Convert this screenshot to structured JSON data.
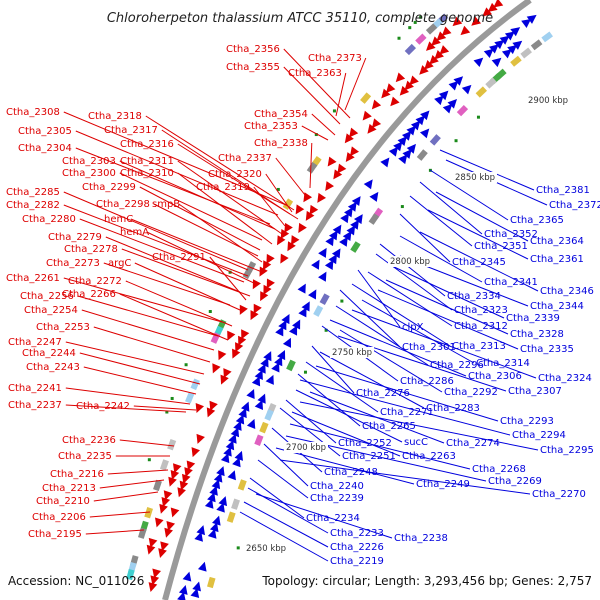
{
  "title": "Chloroherpeton thalassium ATCC 35110, complete genome",
  "footer": {
    "accession": "Accession: NC_011026",
    "summary": "Topology: circular; Length: 3,293,456 bp; Genes: 2,757"
  },
  "colors": {
    "forward_strand": "#dd0000",
    "reverse_strand": "#0000dd",
    "backbone": "#999999",
    "marker": "#1a8a1a"
  },
  "kbp_ticks": [
    {
      "label": "2900 kbp"
    },
    {
      "label": "2850 kbp"
    },
    {
      "label": "2800 kbp"
    },
    {
      "label": "2750 kbp"
    },
    {
      "label": "2700 kbp"
    },
    {
      "label": "2650 kbp"
    }
  ],
  "forward_labels": [
    "Ctha_2356",
    "Ctha_2373",
    "Ctha_2355",
    "Ctha_2363",
    "Ctha_2354",
    "Ctha_2353",
    "Ctha_2338",
    "Ctha_2337",
    "Ctha_2308",
    "Ctha_2318",
    "Ctha_2305",
    "Ctha_2317",
    "Ctha_2316",
    "Ctha_2304",
    "Ctha_2303",
    "Ctha_2311",
    "Ctha_2300",
    "Ctha_2310",
    "Ctha_2320",
    "Ctha_2299",
    "Ctha_2319",
    "Ctha_2298",
    "smpB",
    "Ctha_2285",
    "Ctha_2282",
    "hemC",
    "Ctha_2280",
    "hemA",
    "Ctha_2279",
    "Ctha_2278",
    "Ctha_2273",
    "argC",
    "Ctha_2291",
    "Ctha_2261",
    "Ctha_2272",
    "Ctha_2256",
    "Ctha_2266",
    "Ctha_2254",
    "Ctha_2253",
    "Ctha_2247",
    "Ctha_2244",
    "Ctha_2243",
    "Ctha_2241",
    "Ctha_2237",
    "Ctha_2242",
    "Ctha_2236",
    "Ctha_2235",
    "Ctha_2216",
    "Ctha_2213",
    "Ctha_2210",
    "Ctha_2206",
    "Ctha_2195"
  ],
  "reverse_labels": [
    "Ctha_2381",
    "Ctha_2372",
    "Ctha_2365",
    "Ctha_2352",
    "Ctha_2364",
    "Ctha_2351",
    "Ctha_2361",
    "Ctha_2345",
    "Ctha_2341",
    "Ctha_2346",
    "Ctha_2334",
    "Ctha_2344",
    "Ctha_2323",
    "Ctha_2339",
    "clpX",
    "Ctha_2312",
    "Ctha_2328",
    "Ctha_2313",
    "Ctha_2335",
    "Ctha_2301",
    "Ctha_2314",
    "Ctha_2296",
    "Ctha_2324",
    "Ctha_2306",
    "Ctha_2286",
    "Ctha_2292",
    "Ctha_2307",
    "Ctha_2276",
    "Ctha_2283",
    "Ctha_2271",
    "Ctha_2293",
    "Ctha_2265",
    "Ctha_2294",
    "sucC",
    "Ctha_2274",
    "Ctha_2252",
    "Ctha_2295",
    "Ctha_2251",
    "Ctha_2263",
    "Ctha_2268",
    "Ctha_2248",
    "Ctha_2269",
    "Ctha_2240",
    "Ctha_2249",
    "Ctha_2270",
    "Ctha_2239",
    "Ctha_2234",
    "Ctha_2233",
    "Ctha_2238",
    "Ctha_2226",
    "Ctha_2219"
  ]
}
